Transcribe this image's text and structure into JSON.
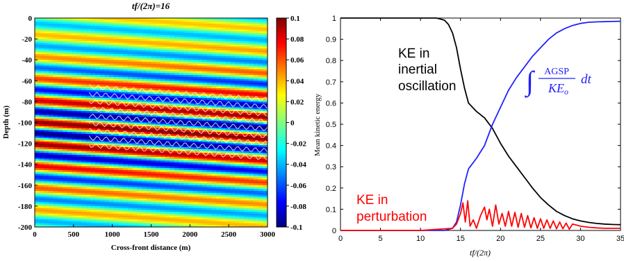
{
  "left_panel": {
    "title": "tf/(2π)=16",
    "xlabel": "Cross-front distance (m)",
    "ylabel": "Depth (m)",
    "colorbar_ticks": [
      "0.1",
      "0.08",
      "0.06",
      "0.04",
      "0.02",
      "0",
      "-0.02",
      "-0.04",
      "-0.06",
      "-0.08",
      "-0.1"
    ]
  },
  "right_panel": {
    "annotations": {
      "ke_inertial": [
        "KE in",
        "inertial",
        "oscillation"
      ],
      "ke_perturbation": [
        "KE in",
        "perturbation"
      ],
      "agsp_integral_num": "AGSP",
      "agsp_integral_den": "KE",
      "agsp_integral_den_sub": "o",
      "agsp_integral_dt": "dt"
    }
  },
  "colors": {
    "ke_inertial": "#000000",
    "agsp": "#2020ff",
    "ke_perturbation": "#ff0000"
  },
  "chart_data": [
    {
      "type": "heatmap",
      "title": "tf/(2π)=16",
      "xlabel": "Cross-front distance (m)",
      "ylabel": "Depth (m)",
      "xlim": [
        0,
        3000
      ],
      "ylim": [
        -200,
        0
      ],
      "xticks": [
        0,
        500,
        1000,
        1500,
        2000,
        2500,
        3000
      ],
      "yticks": [
        0,
        -20,
        -40,
        -60,
        -80,
        -100,
        -120,
        -140,
        -160,
        -180,
        -200
      ],
      "colorbar": {
        "min": -0.1,
        "max": 0.1,
        "ticks": [
          0.1,
          0.08,
          0.06,
          0.04,
          0.02,
          0,
          -0.02,
          -0.04,
          -0.06,
          -0.08,
          -0.1
        ],
        "colormap": "jet"
      },
      "pattern": {
        "band_wavelength_m": 21,
        "band_tilt_m_per_3000m": 16,
        "amplitude_peak_depth_m": -108
      },
      "grid": false
    },
    {
      "type": "line",
      "xlabel": "tf/(2π)",
      "ylabel": "Mean kinetic energy",
      "xlim": [
        0,
        35
      ],
      "ylim": [
        0,
        1
      ],
      "xticks": [
        0,
        5,
        10,
        15,
        20,
        25,
        30,
        35
      ],
      "yticks": [
        0,
        0.1,
        0.2,
        0.3,
        0.4,
        0.5,
        0.6,
        0.7,
        0.8,
        0.9,
        1
      ],
      "grid": false,
      "series": [
        {
          "key": "ke_inertial",
          "x": [
            0,
            5,
            10,
            12,
            13,
            13.5,
            14,
            14.5,
            15,
            15.5,
            16,
            17,
            18,
            19,
            20,
            21,
            22,
            23,
            24,
            25,
            26,
            27,
            28,
            29,
            30,
            31,
            32,
            33,
            34,
            35
          ],
          "y": [
            1,
            1,
            1,
            1,
            0.99,
            0.97,
            0.93,
            0.86,
            0.76,
            0.67,
            0.6,
            0.56,
            0.53,
            0.48,
            0.41,
            0.35,
            0.3,
            0.25,
            0.2,
            0.155,
            0.12,
            0.09,
            0.07,
            0.055,
            0.045,
            0.038,
            0.033,
            0.03,
            0.028,
            0.027
          ]
        },
        {
          "key": "agsp",
          "x": [
            0,
            5,
            10,
            13,
            14,
            14.5,
            15,
            15.5,
            16,
            17,
            18,
            19,
            20,
            21,
            22,
            23,
            24,
            25,
            26,
            27,
            28,
            29,
            30,
            31,
            32,
            33,
            34,
            35
          ],
          "y": [
            0,
            0,
            0,
            0,
            0.01,
            0.04,
            0.12,
            0.22,
            0.29,
            0.34,
            0.4,
            0.5,
            0.58,
            0.66,
            0.72,
            0.77,
            0.82,
            0.86,
            0.9,
            0.93,
            0.95,
            0.965,
            0.975,
            0.98,
            0.982,
            0.983,
            0.984,
            0.985
          ]
        },
        {
          "key": "ke_perturbation",
          "x": [
            0,
            10,
            14,
            14.5,
            15,
            15.3,
            15.6,
            15.9,
            16.2,
            16.6,
            17,
            17.5,
            18,
            18.3,
            18.6,
            19,
            19.4,
            19.8,
            20.2,
            20.6,
            21,
            21.4,
            21.8,
            22.2,
            22.6,
            23,
            23.4,
            23.8,
            24.2,
            24.6,
            25,
            25.4,
            25.8,
            26.2,
            26.6,
            27,
            27.4,
            27.8,
            28.2,
            28.6,
            29,
            29.5,
            30,
            31,
            32,
            33,
            34,
            35
          ],
          "y": [
            0,
            0,
            0.01,
            0.03,
            0.08,
            0.13,
            0.04,
            0.14,
            0.02,
            0.05,
            0.01,
            0.07,
            0.11,
            0.05,
            0.1,
            0.02,
            0.12,
            0.03,
            0.08,
            0.02,
            0.09,
            0.02,
            0.085,
            0.015,
            0.08,
            0.015,
            0.07,
            0.012,
            0.06,
            0.01,
            0.055,
            0.01,
            0.05,
            0.01,
            0.045,
            0.008,
            0.04,
            0.008,
            0.035,
            0.006,
            0.03,
            0.025,
            0.02,
            0.015,
            0.012,
            0.01,
            0.01,
            0.01
          ]
        }
      ]
    }
  ]
}
